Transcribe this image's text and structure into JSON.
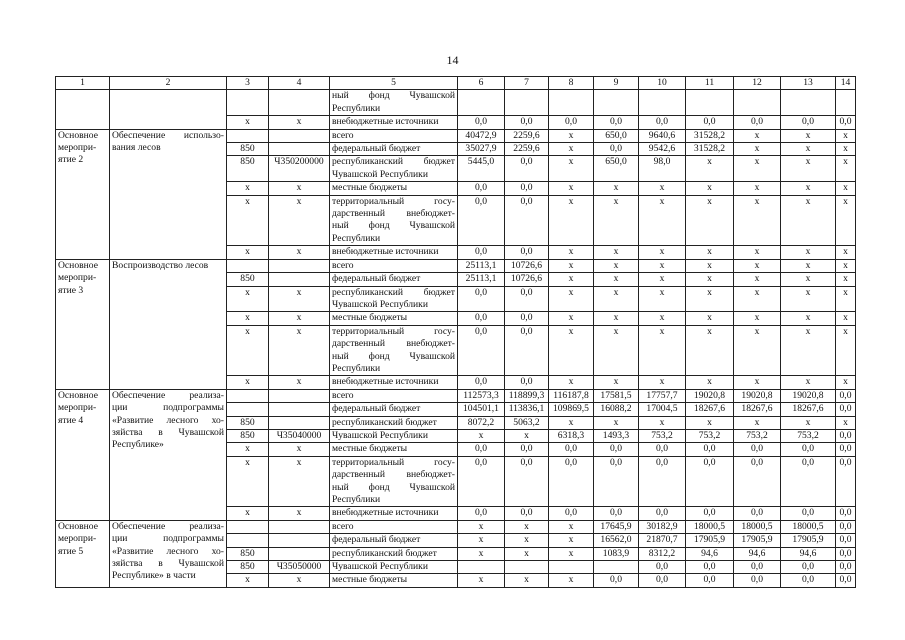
{
  "page_number": "14",
  "headers": [
    "1",
    "2",
    "3",
    "4",
    "5",
    "6",
    "7",
    "8",
    "9",
    "10",
    "11",
    "12",
    "13",
    "14"
  ],
  "groups": [
    {
      "activity": [],
      "title": [],
      "rows": [
        {
          "c3": "",
          "c4": "",
          "source": [
            "ный фонд Чувашской",
            "Республики"
          ],
          "vals": [
            "",
            "",
            "",
            "",
            "",
            "",
            "",
            "",
            ""
          ]
        },
        {
          "c3": "x",
          "c4": "x",
          "source": [
            "внебюджетные источники"
          ],
          "vals": [
            "0,0",
            "0,0",
            "0,0",
            "0,0",
            "0,0",
            "0,0",
            "0,0",
            "0,0",
            "0,0"
          ]
        }
      ]
    },
    {
      "activity": [
        "Основное",
        "меропри-",
        "ятие 2"
      ],
      "title": [
        "Обеспечение использо-",
        "вания лесов"
      ],
      "rows": [
        {
          "c3": "",
          "c4": "",
          "source": [
            "всего"
          ],
          "vals": [
            "40472,9",
            "2259,6",
            "x",
            "650,0",
            "9640,6",
            "31528,2",
            "x",
            "x",
            "x"
          ]
        },
        {
          "c3": "850",
          "c4": "",
          "source": [
            "федеральный бюджет"
          ],
          "vals": [
            "35027,9",
            "2259,6",
            "x",
            "0,0",
            "9542,6",
            "31528,2",
            "x",
            "x",
            "x"
          ]
        },
        {
          "c3": "850",
          "c4": "Ч350200000",
          "source": [
            "республиканский бюджет",
            "Чувашской Республики"
          ],
          "vals": [
            "5445,0",
            "0,0",
            "x",
            "650,0",
            "98,0",
            "x",
            "x",
            "x",
            "x"
          ]
        },
        {
          "c3": "x",
          "c4": "x",
          "source": [
            "местные бюджеты"
          ],
          "vals": [
            "0,0",
            "0,0",
            "x",
            "x",
            "x",
            "x",
            "x",
            "x",
            "x"
          ]
        },
        {
          "c3": "x",
          "c4": "x",
          "source": [
            "территориальный госу-",
            "дарственный внебюджет-",
            "ный фонд Чувашской",
            "Республики"
          ],
          "vals": [
            "0,0",
            "0,0",
            "x",
            "x",
            "x",
            "x",
            "x",
            "x",
            "x"
          ]
        },
        {
          "c3": "x",
          "c4": "x",
          "source": [
            "внебюджетные источники"
          ],
          "vals": [
            "0,0",
            "0,0",
            "x",
            "x",
            "x",
            "x",
            "x",
            "x",
            "x"
          ]
        }
      ]
    },
    {
      "activity": [
        "Основное",
        "меропри-",
        "ятие 3"
      ],
      "title": [
        "Воспроизводство лесов"
      ],
      "rows": [
        {
          "c3": "",
          "c4": "",
          "source": [
            "всего"
          ],
          "vals": [
            "25113,1",
            "10726,6",
            "x",
            "x",
            "x",
            "x",
            "x",
            "x",
            "x"
          ]
        },
        {
          "c3": "850",
          "c4": "",
          "source": [
            "федеральный бюджет"
          ],
          "vals": [
            "25113,1",
            "10726,6",
            "x",
            "x",
            "x",
            "x",
            "x",
            "x",
            "x"
          ]
        },
        {
          "c3": "x",
          "c4": "x",
          "source": [
            "республиканский бюджет",
            "Чувашской Республики"
          ],
          "vals": [
            "0,0",
            "0,0",
            "x",
            "x",
            "x",
            "x",
            "x",
            "x",
            "x"
          ]
        },
        {
          "c3": "x",
          "c4": "x",
          "source": [
            "местные бюджеты"
          ],
          "vals": [
            "0,0",
            "0,0",
            "x",
            "x",
            "x",
            "x",
            "x",
            "x",
            "x"
          ]
        },
        {
          "c3": "x",
          "c4": "x",
          "source": [
            "территориальный госу-",
            "дарственный внебюджет-",
            "ный фонд Чувашской",
            "Республики"
          ],
          "vals": [
            "0,0",
            "0,0",
            "x",
            "x",
            "x",
            "x",
            "x",
            "x",
            "x"
          ]
        },
        {
          "c3": "x",
          "c4": "x",
          "source": [
            "внебюджетные источники"
          ],
          "vals": [
            "0,0",
            "0,0",
            "x",
            "x",
            "x",
            "x",
            "x",
            "x",
            "x"
          ]
        }
      ]
    },
    {
      "activity": [
        "Основное",
        "меропри-",
        "ятие 4"
      ],
      "title": [
        "Обеспечение реализа-",
        "ции подпрограммы",
        "«Развитие лесного хо-",
        "зяйства в Чувашской",
        "Республике»"
      ],
      "rows": [
        {
          "c3": "",
          "c4": "",
          "source": [
            "всего"
          ],
          "vals": [
            "112573,3",
            "118899,3",
            "116187,8",
            "17581,5",
            "17757,7",
            "19020,8",
            "19020,8",
            "19020,8",
            "0,0"
          ]
        },
        {
          "c3": "",
          "c4": "",
          "source": [
            "федеральный бюджет"
          ],
          "vals": [
            "104501,1",
            "113836,1",
            "109869,5",
            "16088,2",
            "17004,5",
            "18267,6",
            "18267,6",
            "18267,6",
            "0,0"
          ]
        },
        {
          "c3": "850",
          "c4": "",
          "source": [
            "республиканский бюджет"
          ],
          "vals": [
            "8072,2",
            "5063,2",
            "x",
            "x",
            "x",
            "x",
            "x",
            "x",
            "x"
          ]
        },
        {
          "c3": "850",
          "c4": "Ч35040000",
          "source": [
            "Чувашской Республики"
          ],
          "vals": [
            "x",
            "x",
            "6318,3",
            "1493,3",
            "753,2",
            "753,2",
            "753,2",
            "753,2",
            "0,0"
          ]
        },
        {
          "c3": "x",
          "c4": "x",
          "source": [
            "местные бюджеты"
          ],
          "vals": [
            "0,0",
            "0,0",
            "0,0",
            "0,0",
            "0,0",
            "0,0",
            "0,0",
            "0,0",
            "0,0"
          ]
        },
        {
          "c3": "x",
          "c4": "x",
          "source": [
            "территориальный госу-",
            "дарственный внебюджет-",
            "ный фонд Чувашской",
            "Республики"
          ],
          "vals": [
            "0,0",
            "0,0",
            "0,0",
            "0,0",
            "0,0",
            "0,0",
            "0,0",
            "0,0",
            "0,0"
          ]
        },
        {
          "c3": "x",
          "c4": "x",
          "source": [
            "внебюджетные источники"
          ],
          "vals": [
            "0,0",
            "0,0",
            "0,0",
            "0,0",
            "0,0",
            "0,0",
            "0,0",
            "0,0",
            "0,0"
          ]
        }
      ]
    },
    {
      "activity": [
        "Основное",
        "меропри-",
        "ятие 5"
      ],
      "title": [
        "Обеспечение реализа-",
        "ции подпрограммы",
        "«Развитие лесного хо-",
        "зяйства в Чувашской",
        "Республике» в части"
      ],
      "rows": [
        {
          "c3": "",
          "c4": "",
          "source": [
            "всего"
          ],
          "vals": [
            "x",
            "x",
            "x",
            "17645,9",
            "30182,9",
            "18000,5",
            "18000,5",
            "18000,5",
            "0,0"
          ]
        },
        {
          "c3": "",
          "c4": "",
          "source": [
            "федеральный бюджет"
          ],
          "vals": [
            "x",
            "x",
            "x",
            "16562,0",
            "21870,7",
            "17905,9",
            "17905,9",
            "17905,9",
            "0,0"
          ]
        },
        {
          "c3": "850",
          "c4": "",
          "source": [
            "республиканский бюджет"
          ],
          "vals": [
            "x",
            "x",
            "x",
            "1083,9",
            "8312,2",
            "94,6",
            "94,6",
            "94,6",
            "0,0"
          ]
        },
        {
          "c3": "850",
          "c4": "Ч35050000",
          "source": [
            "Чувашской Республики"
          ],
          "vals": [
            "",
            "",
            "",
            "",
            "0,0",
            "0,0",
            "0,0",
            "0,0",
            "0,0"
          ]
        },
        {
          "c3": "x",
          "c4": "x",
          "source": [
            "местные бюджеты"
          ],
          "vals": [
            "x",
            "x",
            "x",
            "0,0",
            "0,0",
            "0,0",
            "0,0",
            "0,0",
            "0,0"
          ]
        }
      ]
    }
  ]
}
